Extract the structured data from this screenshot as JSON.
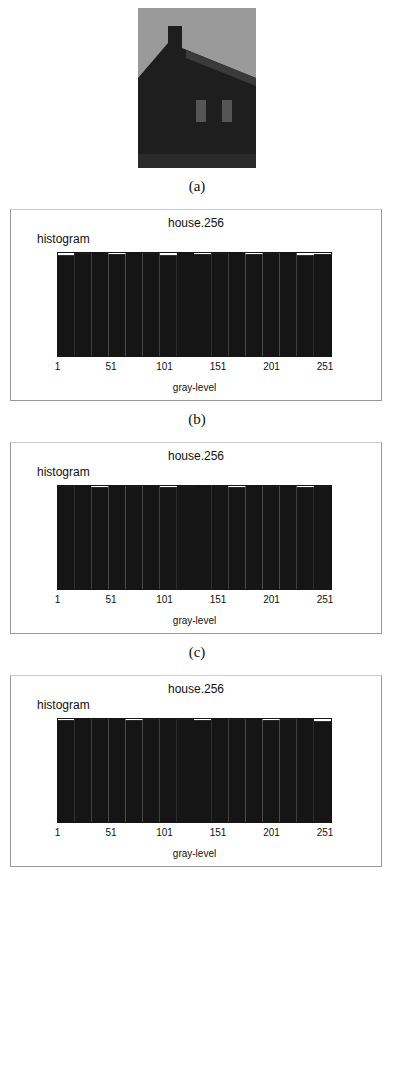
{
  "image": {
    "caption": "(a)"
  },
  "chart_data": [
    {
      "type": "histogram",
      "title": "house.256",
      "subtitle": "histogram",
      "xlabel": "gray-level",
      "bins": [
        1,
        17,
        33,
        49,
        65,
        81,
        97,
        113,
        129,
        145,
        161,
        177,
        193,
        209,
        225,
        241,
        257
      ],
      "counts": [
        97,
        99,
        100,
        98,
        100,
        99,
        97,
        100,
        98,
        99,
        100,
        98,
        99,
        100,
        97,
        98
      ],
      "xlim": [
        1,
        257
      ],
      "xticks": [
        1,
        51,
        101,
        151,
        201,
        251
      ],
      "ylim": [
        0,
        100
      ],
      "tick_labels": "x",
      "color": "#151515",
      "caption": "(b)"
    },
    {
      "type": "histogram",
      "title": "house.256",
      "subtitle": "histogram",
      "xlabel": "gray-level",
      "bins": [
        1,
        17,
        33,
        49,
        65,
        81,
        97,
        113,
        129,
        145,
        161,
        177,
        193,
        209,
        225,
        241,
        257
      ],
      "counts": [
        99,
        100,
        98,
        100,
        99,
        100,
        98,
        99,
        100,
        99,
        98,
        100,
        99,
        100,
        98,
        99
      ],
      "xlim": [
        1,
        257
      ],
      "xticks": [
        1,
        51,
        101,
        151,
        201,
        251
      ],
      "ylim": [
        0,
        100
      ],
      "tick_labels": "x",
      "color": "#151515",
      "caption": "(c)"
    },
    {
      "type": "histogram",
      "title": "house.256",
      "subtitle": "histogram",
      "xlabel": "gray-level",
      "bins": [
        1,
        17,
        33,
        49,
        65,
        81,
        97,
        113,
        129,
        145,
        161,
        177,
        193,
        209,
        225,
        241,
        257
      ],
      "counts": [
        98,
        100,
        99,
        100,
        98,
        99,
        100,
        99,
        98,
        100,
        99,
        100,
        98,
        99,
        100,
        97
      ],
      "xlim": [
        1,
        257
      ],
      "xticks": [
        1,
        51,
        101,
        151,
        201,
        251
      ],
      "ylim": [
        0,
        100
      ],
      "tick_labels": "x",
      "color": "#151515"
    }
  ]
}
